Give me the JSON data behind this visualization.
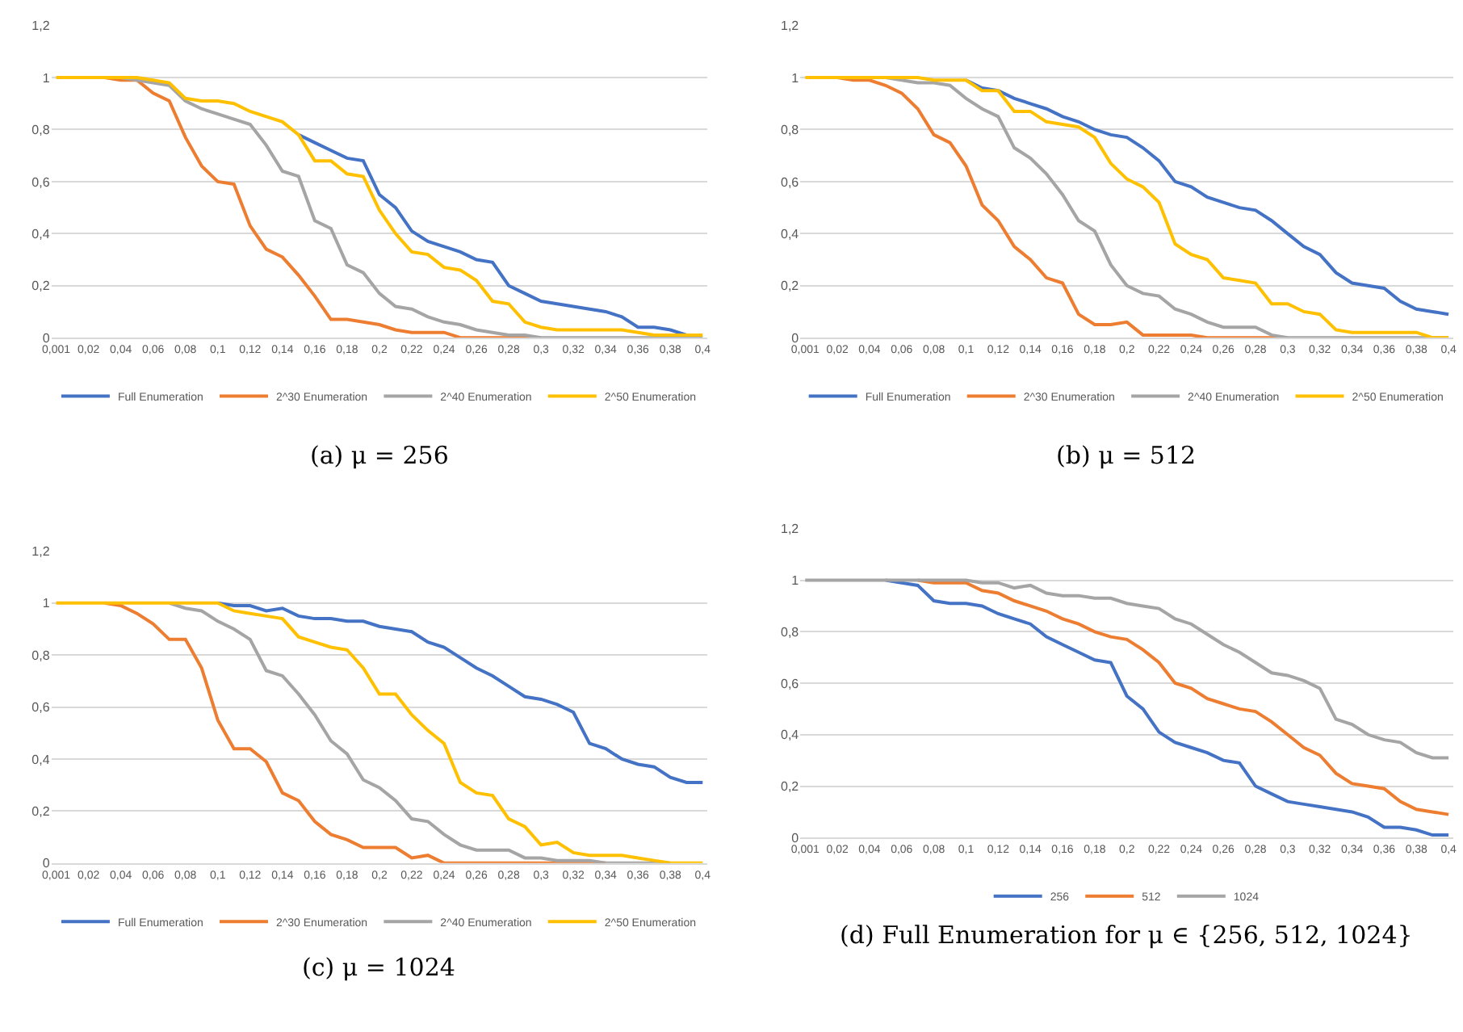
{
  "chart_data": [
    {
      "type": "line",
      "categories": [
        "0,001",
        null,
        "0,02",
        null,
        "0,04",
        null,
        "0,06",
        null,
        "0,08",
        null,
        "0,1",
        null,
        "0,12",
        null,
        "0,14",
        null,
        "0,16",
        null,
        "0,18",
        null,
        "0,2",
        null,
        "0,22",
        null,
        "0,24",
        null,
        "0,26",
        null,
        "0,28",
        null,
        "0,3",
        null,
        "0,32",
        null,
        "0,34",
        null,
        "0,36",
        null,
        "0,38",
        null,
        "0,4"
      ],
      "series": [
        {
          "name": "Full Enumeration",
          "color": "#4472c4",
          "values": [
            null,
            null,
            null,
            null,
            null,
            null,
            null,
            null,
            null,
            null,
            null,
            null,
            null,
            null,
            null,
            0.78,
            0.75,
            0.72,
            0.69,
            0.68,
            0.55,
            0.5,
            0.41,
            0.37,
            0.35,
            0.33,
            0.3,
            0.29,
            0.2,
            0.17,
            0.14,
            0.13,
            0.12,
            0.11,
            0.1,
            0.08,
            0.04,
            0.04,
            0.03,
            0.01,
            null
          ]
        },
        {
          "name": "2^30 Enumeration",
          "color": "#ed7d31",
          "values": [
            null,
            null,
            null,
            1,
            0.99,
            0.99,
            0.94,
            0.91,
            0.77,
            0.66,
            0.6,
            0.59,
            0.43,
            0.34,
            0.31,
            0.24,
            0.16,
            0.07,
            0.07,
            0.06,
            0.05,
            0.03,
            0.02,
            0.02,
            0.02,
            0,
            0,
            0,
            0,
            0,
            0,
            null,
            null,
            null,
            null,
            null,
            null,
            null,
            null,
            null,
            null
          ]
        },
        {
          "name": "2^40 Enumeration",
          "color": "#a5a5a5",
          "values": [
            null,
            null,
            null,
            null,
            1,
            0.99,
            0.98,
            0.97,
            0.91,
            0.88,
            0.86,
            0.84,
            0.82,
            0.74,
            0.64,
            0.62,
            0.45,
            0.42,
            0.28,
            0.25,
            0.17,
            0.12,
            0.11,
            0.08,
            0.06,
            0.05,
            0.03,
            0.02,
            0.01,
            0.01,
            0,
            0,
            0,
            0,
            0,
            0,
            0,
            0,
            0,
            0,
            0
          ]
        },
        {
          "name": "2^50 Enumeration",
          "color": "#ffc000",
          "values": [
            1,
            1,
            1,
            1,
            1,
            1,
            0.99,
            0.98,
            0.92,
            0.91,
            0.91,
            0.9,
            0.87,
            0.85,
            0.83,
            0.78,
            0.68,
            0.68,
            0.63,
            0.62,
            0.49,
            0.4,
            0.33,
            0.32,
            0.27,
            0.26,
            0.22,
            0.14,
            0.13,
            0.06,
            0.04,
            0.03,
            0.03,
            0.03,
            0.03,
            0.03,
            0.02,
            0.01,
            0.01,
            0.01,
            0.01
          ]
        }
      ],
      "ylim": [
        0,
        1.2
      ],
      "yticks": [
        0,
        {
          "value": 0.2,
          "label": "0,2"
        },
        {
          "value": 0.4,
          "label": "0,4"
        },
        {
          "value": 0.6,
          "label": "0,6"
        },
        {
          "value": 0.8,
          "label": "0,8"
        },
        1,
        {
          "value": 1.2,
          "label": "1,2"
        }
      ],
      "grid": "y",
      "legend": "bottom",
      "annotations": [
        "(a) μ = 256"
      ]
    },
    {
      "type": "line",
      "categories": [
        "0,001",
        null,
        "0,02",
        null,
        "0,04",
        null,
        "0,06",
        null,
        "0,08",
        null,
        "0,1",
        null,
        "0,12",
        null,
        "0,14",
        null,
        "0,16",
        null,
        "0,18",
        null,
        "0,2",
        null,
        "0,22",
        null,
        "0,24",
        null,
        "0,26",
        null,
        "0,28",
        null,
        "0,3",
        null,
        "0,32",
        null,
        "0,34",
        null,
        "0,36",
        null,
        "0,38",
        null,
        "0,4"
      ],
      "series": [
        {
          "name": "Full Enumeration",
          "color": "#4472c4",
          "values": [
            null,
            null,
            null,
            null,
            null,
            null,
            null,
            null,
            null,
            null,
            0.99,
            0.96,
            0.95,
            0.92,
            0.9,
            0.88,
            0.85,
            0.83,
            0.8,
            0.78,
            0.77,
            0.73,
            0.68,
            0.6,
            0.58,
            0.54,
            0.52,
            0.5,
            0.49,
            0.45,
            0.4,
            0.35,
            0.32,
            0.25,
            0.21,
            0.2,
            0.19,
            0.14,
            0.11,
            0.1,
            0.09
          ]
        },
        {
          "name": "2^30 Enumeration",
          "color": "#ed7d31",
          "values": [
            null,
            null,
            1,
            0.99,
            0.99,
            0.97,
            0.94,
            0.88,
            0.78,
            0.75,
            0.66,
            0.51,
            0.45,
            0.35,
            0.3,
            0.23,
            0.21,
            0.09,
            0.05,
            0.05,
            0.06,
            0.01,
            0.01,
            0.01,
            0.01,
            0,
            0,
            0,
            0,
            0,
            0,
            null,
            null,
            null,
            null,
            null,
            null,
            null,
            null,
            null,
            null
          ]
        },
        {
          "name": "2^40 Enumeration",
          "color": "#a5a5a5",
          "values": [
            null,
            null,
            null,
            null,
            null,
            1,
            0.99,
            0.98,
            0.98,
            0.97,
            0.92,
            0.88,
            0.85,
            0.73,
            0.69,
            0.63,
            0.55,
            0.45,
            0.41,
            0.28,
            0.2,
            0.17,
            0.16,
            0.11,
            0.09,
            0.06,
            0.04,
            0.04,
            0.04,
            0.01,
            0,
            0,
            0,
            0,
            0,
            0,
            0,
            0,
            0,
            0,
            0
          ]
        },
        {
          "name": "2^50 Enumeration",
          "color": "#ffc000",
          "values": [
            1,
            1,
            1,
            1,
            1,
            1,
            1,
            1,
            0.99,
            0.99,
            0.99,
            0.95,
            0.95,
            0.87,
            0.87,
            0.83,
            0.82,
            0.81,
            0.77,
            0.67,
            0.61,
            0.58,
            0.52,
            0.36,
            0.32,
            0.3,
            0.23,
            0.22,
            0.21,
            0.13,
            0.13,
            0.1,
            0.09,
            0.03,
            0.02,
            0.02,
            0.02,
            0.02,
            0.02,
            0,
            0
          ]
        }
      ],
      "ylim": [
        0,
        1.2
      ],
      "yticks": [
        0,
        {
          "value": 0.2,
          "label": "0,2"
        },
        {
          "value": 0.4,
          "label": "0,4"
        },
        {
          "value": 0.6,
          "label": "0,6"
        },
        {
          "value": 0.8,
          "label": "0,8"
        },
        1,
        {
          "value": 1.2,
          "label": "1,2"
        }
      ],
      "grid": "y",
      "legend": "bottom",
      "annotations": [
        "(b) μ = 512"
      ]
    },
    {
      "type": "line",
      "categories": [
        "0,001",
        null,
        "0,02",
        null,
        "0,04",
        null,
        "0,06",
        null,
        "0,08",
        null,
        "0,1",
        null,
        "0,12",
        null,
        "0,14",
        null,
        "0,16",
        null,
        "0,18",
        null,
        "0,2",
        null,
        "0,22",
        null,
        "0,24",
        null,
        "0,26",
        null,
        "0,28",
        null,
        "0,3",
        null,
        "0,32",
        null,
        "0,34",
        null,
        "0,36",
        null,
        "0,38",
        null,
        "0,4"
      ],
      "series": [
        {
          "name": "Full Enumeration",
          "color": "#4472c4",
          "values": [
            null,
            null,
            null,
            null,
            null,
            null,
            null,
            null,
            null,
            null,
            1,
            0.99,
            0.99,
            0.97,
            0.98,
            0.95,
            0.94,
            0.94,
            0.93,
            0.93,
            0.91,
            0.9,
            0.89,
            0.85,
            0.83,
            0.79,
            0.75,
            0.72,
            0.68,
            0.64,
            0.63,
            0.61,
            0.58,
            0.46,
            0.44,
            0.4,
            0.38,
            0.37,
            0.33,
            0.31,
            0.31
          ]
        },
        {
          "name": "2^30 Enumeration",
          "color": "#ed7d31",
          "values": [
            null,
            null,
            null,
            1,
            0.99,
            0.96,
            0.92,
            0.86,
            0.86,
            0.75,
            0.55,
            0.44,
            0.44,
            0.39,
            0.27,
            0.24,
            0.16,
            0.11,
            0.09,
            0.06,
            0.06,
            0.06,
            0.02,
            0.03,
            0,
            0,
            0,
            0,
            0,
            0,
            0,
            0,
            0,
            0,
            0,
            null,
            null,
            null,
            null,
            null,
            null
          ]
        },
        {
          "name": "2^40 Enumeration",
          "color": "#a5a5a5",
          "values": [
            null,
            null,
            null,
            null,
            null,
            null,
            null,
            1,
            0.98,
            0.97,
            0.93,
            0.9,
            0.86,
            0.74,
            0.72,
            0.65,
            0.57,
            0.47,
            0.42,
            0.32,
            0.29,
            0.24,
            0.17,
            0.16,
            0.11,
            0.07,
            0.05,
            0.05,
            0.05,
            0.02,
            0.02,
            0.01,
            0.01,
            0.01,
            0,
            0,
            0,
            0,
            0,
            null,
            null
          ]
        },
        {
          "name": "2^50 Enumeration",
          "color": "#ffc000",
          "values": [
            1,
            1,
            1,
            1,
            1,
            1,
            1,
            1,
            1,
            1,
            1,
            0.97,
            0.96,
            0.95,
            0.94,
            0.87,
            0.85,
            0.83,
            0.82,
            0.75,
            0.65,
            0.65,
            0.57,
            0.51,
            0.46,
            0.31,
            0.27,
            0.26,
            0.17,
            0.14,
            0.07,
            0.08,
            0.04,
            0.03,
            0.03,
            0.03,
            0.02,
            0.01,
            0,
            0,
            0
          ]
        }
      ],
      "ylim": [
        0,
        1.2
      ],
      "yticks": [
        0,
        {
          "value": 0.2,
          "label": "0,2"
        },
        {
          "value": 0.4,
          "label": "0,4"
        },
        {
          "value": 0.6,
          "label": "0,6"
        },
        {
          "value": 0.8,
          "label": "0,8"
        },
        1,
        {
          "value": 1.2,
          "label": "1,2"
        }
      ],
      "grid": "y",
      "legend": "bottom",
      "annotations": [
        "(c) μ = 1024"
      ]
    },
    {
      "type": "line",
      "categories": [
        "0,001",
        null,
        "0,02",
        null,
        "0,04",
        null,
        "0,06",
        null,
        "0,08",
        null,
        "0,1",
        null,
        "0,12",
        null,
        "0,14",
        null,
        "0,16",
        null,
        "0,18",
        null,
        "0,2",
        null,
        "0,22",
        null,
        "0,24",
        null,
        "0,26",
        null,
        "0,28",
        null,
        "0,3",
        null,
        "0,32",
        null,
        "0,34",
        null,
        "0,36",
        null,
        "0,38",
        null,
        "0,4"
      ],
      "series": [
        {
          "name": "256",
          "color": "#4472c4",
          "values": [
            null,
            null,
            null,
            null,
            null,
            1,
            0.99,
            0.98,
            0.92,
            0.91,
            0.91,
            0.9,
            0.87,
            0.85,
            0.83,
            0.78,
            0.75,
            0.72,
            0.69,
            0.68,
            0.55,
            0.5,
            0.41,
            0.37,
            0.35,
            0.33,
            0.3,
            0.29,
            0.2,
            0.17,
            0.14,
            0.13,
            0.12,
            0.11,
            0.1,
            0.08,
            0.04,
            0.04,
            0.03,
            0.01,
            0.01
          ]
        },
        {
          "name": "512",
          "color": "#ed7d31",
          "values": [
            null,
            null,
            null,
            null,
            null,
            null,
            null,
            1,
            0.99,
            0.99,
            0.99,
            0.96,
            0.95,
            0.92,
            0.9,
            0.88,
            0.85,
            0.83,
            0.8,
            0.78,
            0.77,
            0.73,
            0.68,
            0.6,
            0.58,
            0.54,
            0.52,
            0.5,
            0.49,
            0.45,
            0.4,
            0.35,
            0.32,
            0.25,
            0.21,
            0.2,
            0.19,
            0.14,
            0.11,
            0.1,
            0.09
          ]
        },
        {
          "name": "1024",
          "color": "#a5a5a5",
          "values": [
            1,
            1,
            1,
            1,
            1,
            1,
            1,
            1,
            1,
            1,
            1,
            0.99,
            0.99,
            0.97,
            0.98,
            0.95,
            0.94,
            0.94,
            0.93,
            0.93,
            0.91,
            0.9,
            0.89,
            0.85,
            0.83,
            0.79,
            0.75,
            0.72,
            0.68,
            0.64,
            0.63,
            0.61,
            0.58,
            0.46,
            0.44,
            0.4,
            0.38,
            0.37,
            0.33,
            0.31,
            0.31
          ]
        }
      ],
      "ylim": [
        0,
        1.2
      ],
      "yticks": [
        0,
        {
          "value": 0.2,
          "label": "0,2"
        },
        {
          "value": 0.4,
          "label": "0,4"
        },
        {
          "value": 0.6,
          "label": "0,6"
        },
        {
          "value": 0.8,
          "label": "0,8"
        },
        1,
        {
          "value": 1.2,
          "label": "1,2"
        }
      ],
      "grid": "y",
      "legend": "bottom",
      "annotations": [
        "(d) Full Enumeration for μ ∈ {256, 512, 1024}"
      ]
    }
  ]
}
